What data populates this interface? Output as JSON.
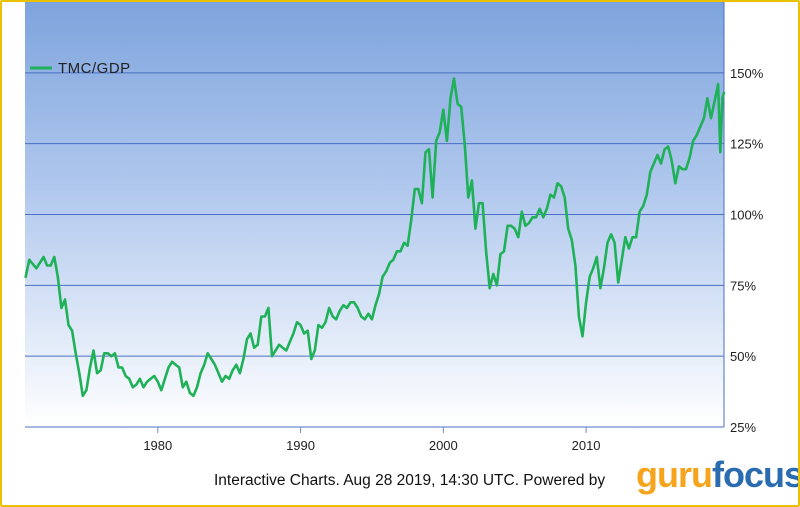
{
  "chart_data": {
    "type": "line",
    "title": "",
    "xlabel": "",
    "ylabel": "",
    "xlim": [
      1970.7,
      2019.66
    ],
    "ylim": [
      25,
      175
    ],
    "y_unit": "%",
    "y_ticks": [
      25,
      50,
      75,
      100,
      125,
      150
    ],
    "y_tick_labels": [
      "25%",
      "50%",
      "75%",
      "100%",
      "125%",
      "150%"
    ],
    "x_ticks": [
      1980,
      1990,
      2000,
      2010
    ],
    "x_tick_labels": [
      "1980",
      "1990",
      "2000",
      "2010"
    ],
    "grid": "horizontal",
    "legend_position": "top-left",
    "series": [
      {
        "name": "TMC/GDP",
        "color": "#1fb158",
        "points": [
          [
            1970.75,
            78
          ],
          [
            1971.0,
            84
          ],
          [
            1971.5,
            81
          ],
          [
            1972.0,
            85
          ],
          [
            1972.25,
            82
          ],
          [
            1972.5,
            82
          ],
          [
            1972.75,
            85
          ],
          [
            1973.0,
            78
          ],
          [
            1973.25,
            67
          ],
          [
            1973.5,
            70
          ],
          [
            1973.75,
            61
          ],
          [
            1974.0,
            59
          ],
          [
            1974.25,
            51
          ],
          [
            1974.5,
            44
          ],
          [
            1974.75,
            36
          ],
          [
            1975.0,
            38
          ],
          [
            1975.25,
            46
          ],
          [
            1975.5,
            52
          ],
          [
            1975.75,
            44
          ],
          [
            1976.0,
            45
          ],
          [
            1976.25,
            51
          ],
          [
            1976.5,
            51
          ],
          [
            1976.75,
            50
          ],
          [
            1977.0,
            51
          ],
          [
            1977.25,
            46
          ],
          [
            1977.5,
            46
          ],
          [
            1977.75,
            43
          ],
          [
            1978.0,
            42
          ],
          [
            1978.25,
            39
          ],
          [
            1978.5,
            40
          ],
          [
            1978.75,
            42
          ],
          [
            1979.0,
            39
          ],
          [
            1979.25,
            41
          ],
          [
            1979.5,
            42
          ],
          [
            1979.75,
            43
          ],
          [
            1980.0,
            41
          ],
          [
            1980.25,
            38
          ],
          [
            1980.5,
            42
          ],
          [
            1980.75,
            46
          ],
          [
            1981.0,
            48
          ],
          [
            1981.25,
            47
          ],
          [
            1981.5,
            46
          ],
          [
            1981.75,
            39
          ],
          [
            1982.0,
            41
          ],
          [
            1982.25,
            37
          ],
          [
            1982.5,
            36
          ],
          [
            1982.75,
            39
          ],
          [
            1983.0,
            44
          ],
          [
            1983.25,
            47
          ],
          [
            1983.5,
            51
          ],
          [
            1983.75,
            49
          ],
          [
            1984.0,
            47
          ],
          [
            1984.25,
            44
          ],
          [
            1984.5,
            41
          ],
          [
            1984.75,
            43
          ],
          [
            1985.0,
            42
          ],
          [
            1985.25,
            45
          ],
          [
            1985.5,
            47
          ],
          [
            1985.75,
            44
          ],
          [
            1986.0,
            49
          ],
          [
            1986.25,
            56
          ],
          [
            1986.5,
            58
          ],
          [
            1986.75,
            53
          ],
          [
            1987.0,
            54
          ],
          [
            1987.25,
            64
          ],
          [
            1987.5,
            64
          ],
          [
            1987.75,
            67
          ],
          [
            1988.0,
            50
          ],
          [
            1988.25,
            52
          ],
          [
            1988.5,
            54
          ],
          [
            1988.75,
            53
          ],
          [
            1989.0,
            52
          ],
          [
            1989.25,
            55
          ],
          [
            1989.5,
            58
          ],
          [
            1989.75,
            62
          ],
          [
            1990.0,
            61
          ],
          [
            1990.25,
            58
          ],
          [
            1990.5,
            59
          ],
          [
            1990.75,
            49
          ],
          [
            1991.0,
            52
          ],
          [
            1991.25,
            61
          ],
          [
            1991.5,
            60
          ],
          [
            1991.75,
            62
          ],
          [
            1992.0,
            67
          ],
          [
            1992.25,
            64
          ],
          [
            1992.5,
            63
          ],
          [
            1992.75,
            66
          ],
          [
            1993.0,
            68
          ],
          [
            1993.25,
            67
          ],
          [
            1993.5,
            69
          ],
          [
            1993.75,
            69
          ],
          [
            1994.0,
            67
          ],
          [
            1994.25,
            64
          ],
          [
            1994.5,
            63
          ],
          [
            1994.75,
            65
          ],
          [
            1995.0,
            63
          ],
          [
            1995.25,
            68
          ],
          [
            1995.5,
            72
          ],
          [
            1995.75,
            78
          ],
          [
            1996.0,
            80
          ],
          [
            1996.25,
            83
          ],
          [
            1996.5,
            84
          ],
          [
            1996.75,
            87
          ],
          [
            1997.0,
            87
          ],
          [
            1997.25,
            90
          ],
          [
            1997.5,
            89
          ],
          [
            1997.75,
            98
          ],
          [
            1998.0,
            109
          ],
          [
            1998.25,
            109
          ],
          [
            1998.5,
            104
          ],
          [
            1998.75,
            122
          ],
          [
            1999.0,
            123
          ],
          [
            1999.25,
            106
          ],
          [
            1999.5,
            126
          ],
          [
            1999.75,
            129
          ],
          [
            2000.0,
            137
          ],
          [
            2000.25,
            126
          ],
          [
            2000.5,
            141
          ],
          [
            2000.75,
            148
          ],
          [
            2001.0,
            139
          ],
          [
            2001.25,
            138
          ],
          [
            2001.5,
            125
          ],
          [
            2001.75,
            106
          ],
          [
            2002.0,
            112
          ],
          [
            2002.25,
            95
          ],
          [
            2002.5,
            104
          ],
          [
            2002.75,
            104
          ],
          [
            2003.0,
            87
          ],
          [
            2003.25,
            74
          ],
          [
            2003.5,
            79
          ],
          [
            2003.75,
            75
          ],
          [
            2004.0,
            86
          ],
          [
            2004.25,
            87
          ],
          [
            2004.5,
            96
          ],
          [
            2004.75,
            96
          ],
          [
            2005.0,
            95
          ],
          [
            2005.25,
            92
          ],
          [
            2005.5,
            101
          ],
          [
            2005.75,
            96
          ],
          [
            2006.0,
            97
          ],
          [
            2006.25,
            99
          ],
          [
            2006.5,
            99
          ],
          [
            2006.75,
            102
          ],
          [
            2007.0,
            99
          ],
          [
            2007.25,
            102
          ],
          [
            2007.5,
            107
          ],
          [
            2007.75,
            106
          ],
          [
            2008.0,
            111
          ],
          [
            2008.25,
            110
          ],
          [
            2008.5,
            106
          ],
          [
            2008.75,
            95
          ],
          [
            2009.0,
            91
          ],
          [
            2009.25,
            82
          ],
          [
            2009.5,
            64
          ],
          [
            2009.75,
            57
          ],
          [
            2010.0,
            69
          ],
          [
            2010.25,
            78
          ],
          [
            2010.5,
            81
          ],
          [
            2010.75,
            85
          ],
          [
            2011.0,
            74
          ],
          [
            2011.25,
            81
          ],
          [
            2011.5,
            90
          ],
          [
            2011.75,
            93
          ],
          [
            2012.0,
            90
          ],
          [
            2012.25,
            76
          ],
          [
            2012.5,
            84
          ],
          [
            2012.75,
            92
          ],
          [
            2013.0,
            88
          ],
          [
            2013.25,
            92
          ],
          [
            2013.5,
            92
          ],
          [
            2013.75,
            101
          ],
          [
            2014.0,
            103
          ],
          [
            2014.25,
            107
          ],
          [
            2014.5,
            115
          ],
          [
            2014.75,
            118
          ],
          [
            2015.0,
            121
          ],
          [
            2015.25,
            118
          ],
          [
            2015.5,
            123
          ],
          [
            2015.75,
            124
          ],
          [
            2016.0,
            119
          ],
          [
            2016.25,
            111
          ],
          [
            2016.5,
            117
          ],
          [
            2016.75,
            116
          ],
          [
            2017.0,
            116
          ],
          [
            2017.25,
            120
          ],
          [
            2017.5,
            126
          ],
          [
            2017.75,
            128
          ],
          [
            2018.0,
            131
          ],
          [
            2018.25,
            134
          ],
          [
            2018.5,
            141
          ],
          [
            2018.75,
            134
          ],
          [
            2019.0,
            140
          ],
          [
            2019.25,
            146
          ],
          [
            2019.4,
            122
          ],
          [
            2019.55,
            141
          ],
          [
            2019.66,
            143
          ]
        ]
      }
    ]
  },
  "footer": {
    "text": "Interactive Charts. Aug 28 2019, 14:30 UTC. Powered by",
    "brand_guru": "guru",
    "brand_focus": "focus"
  }
}
